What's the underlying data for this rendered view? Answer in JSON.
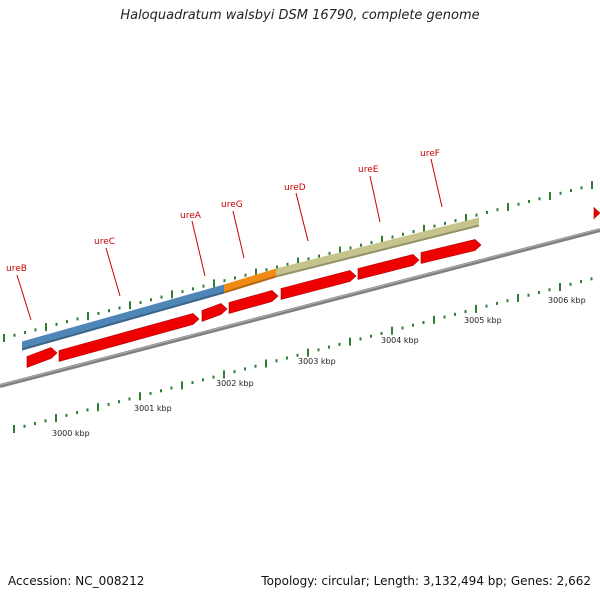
{
  "title": "Haloquadratum walsbyi DSM 16790, complete genome",
  "accession": "Accession: NC_008212",
  "topology": "Topology: circular; Length: 3,132,494 bp; Genes: 2,662",
  "colors": {
    "backbone": "#808080",
    "gene": "#ee0000",
    "tick": "#2e7d32",
    "ureB_ureC_operon": "#4f86b8",
    "ureA_ureG": "#f08c16",
    "ureD_ureF": "#c6c38c",
    "label": "#cc0000"
  },
  "kbp_labels": [
    "3000 kbp",
    "3001 kbp",
    "3002 kbp",
    "3003 kbp",
    "3004 kbp",
    "3005 kbp",
    "3006 kbp"
  ],
  "gene_labels": [
    "ureB",
    "ureC",
    "ureA",
    "ureG",
    "ureD",
    "ureE",
    "ureF"
  ]
}
